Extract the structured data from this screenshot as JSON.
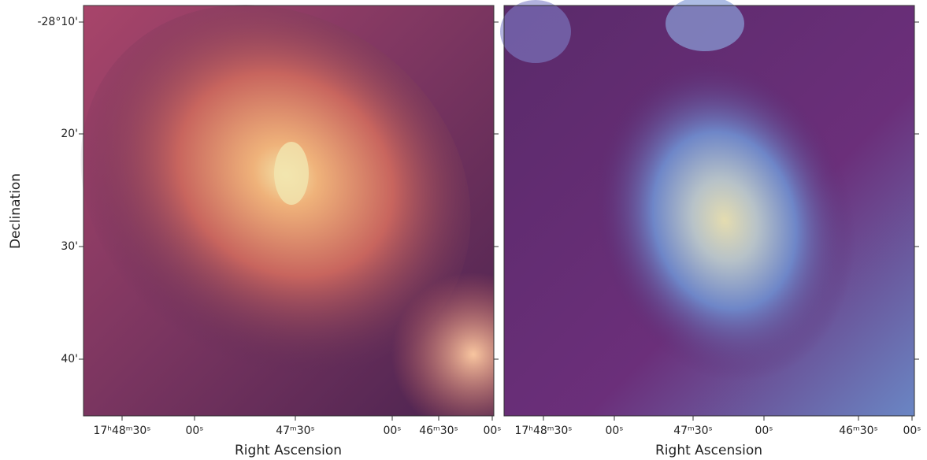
{
  "y_axis": {
    "label": "Declination",
    "ticks": [
      "-28°10'",
      "20'",
      "30'",
      "40'"
    ]
  },
  "panels": [
    {
      "x_axis_label": "Right Ascension",
      "xticks": [
        "17ʰ48ᵐ30ˢ",
        "00ˢ",
        "47ᵐ30ˢ",
        "00ˢ",
        "46ᵐ30ˢ",
        "00ˢ"
      ]
    },
    {
      "x_axis_label": "Right Ascension",
      "xticks": [
        "17ʰ48ᵐ30ˢ",
        "00ˢ",
        "47ᵐ30ˢ",
        "00ˢ",
        "46ᵐ30ˢ",
        "00ˢ"
      ]
    }
  ]
}
